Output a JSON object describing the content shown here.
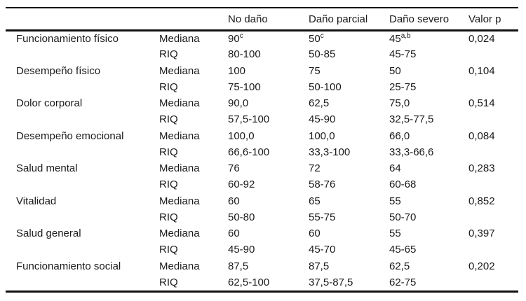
{
  "table": {
    "headers": {
      "domain": "",
      "stat": "",
      "no_dano": "No daño",
      "dano_parcial": "Daño parcial",
      "dano_severo": "Daño severo",
      "valor_p": "Valor p"
    },
    "rows": [
      {
        "domain": "Funcionamiento físico",
        "stat": "Mediana",
        "no_dano": "90",
        "no_dano_sup": "c",
        "dano_parcial": "50",
        "dano_parcial_sup": "c",
        "dano_severo": "45",
        "dano_severo_sup": "a,b",
        "valor_p": "0,024"
      },
      {
        "domain": "",
        "stat": "RIQ",
        "no_dano": "80-100",
        "dano_parcial": "50-85",
        "dano_severo": "45-75",
        "valor_p": ""
      },
      {
        "domain": "Desempeño físico",
        "stat": "Mediana",
        "no_dano": "100",
        "dano_parcial": "75",
        "dano_severo": "50",
        "valor_p": "0,104"
      },
      {
        "domain": "",
        "stat": "RIQ",
        "no_dano": "75-100",
        "dano_parcial": "50-100",
        "dano_severo": "25-75",
        "valor_p": ""
      },
      {
        "domain": "Dolor corporal",
        "stat": "Mediana",
        "no_dano": "90,0",
        "dano_parcial": "62,5",
        "dano_severo": "75,0",
        "valor_p": "0,514"
      },
      {
        "domain": "",
        "stat": "RIQ",
        "no_dano": "57,5-100",
        "dano_parcial": "45-90",
        "dano_severo": "32,5-77,5",
        "valor_p": ""
      },
      {
        "domain": "Desempeño emocional",
        "stat": "Mediana",
        "no_dano": "100,0",
        "dano_parcial": "100,0",
        "dano_severo": "66,0",
        "valor_p": "0,084"
      },
      {
        "domain": "",
        "stat": "RIQ",
        "no_dano": "66,6-100",
        "dano_parcial": "33,3-100",
        "dano_severo": "33,3-66,6",
        "valor_p": ""
      },
      {
        "domain": "Salud mental",
        "stat": "Mediana",
        "no_dano": "76",
        "dano_parcial": "72",
        "dano_severo": "64",
        "valor_p": "0,283"
      },
      {
        "domain": "",
        "stat": "RIQ",
        "no_dano": "60-92",
        "dano_parcial": "58-76",
        "dano_severo": "60-68",
        "valor_p": ""
      },
      {
        "domain": "Vitalidad",
        "stat": "Mediana",
        "no_dano": "60",
        "dano_parcial": "65",
        "dano_severo": "55",
        "valor_p": "0,852"
      },
      {
        "domain": "",
        "stat": "RIQ",
        "no_dano": "50-80",
        "dano_parcial": "55-75",
        "dano_severo": "50-70",
        "valor_p": ""
      },
      {
        "domain": "Salud general",
        "stat": "Mediana",
        "no_dano": "60",
        "dano_parcial": "60",
        "dano_severo": "55",
        "valor_p": "0,397"
      },
      {
        "domain": "",
        "stat": "RIQ",
        "no_dano": "45-90",
        "dano_parcial": "45-70",
        "dano_severo": "45-65",
        "valor_p": ""
      },
      {
        "domain": "Funcionamiento social",
        "stat": "Mediana",
        "no_dano": "87,5",
        "dano_parcial": "87,5",
        "dano_severo": "62,5",
        "valor_p": "0,202"
      },
      {
        "domain": "",
        "stat": "RIQ",
        "no_dano": "62,5-100",
        "dano_parcial": "37,5-87,5",
        "dano_severo": "62-75",
        "valor_p": ""
      }
    ]
  }
}
